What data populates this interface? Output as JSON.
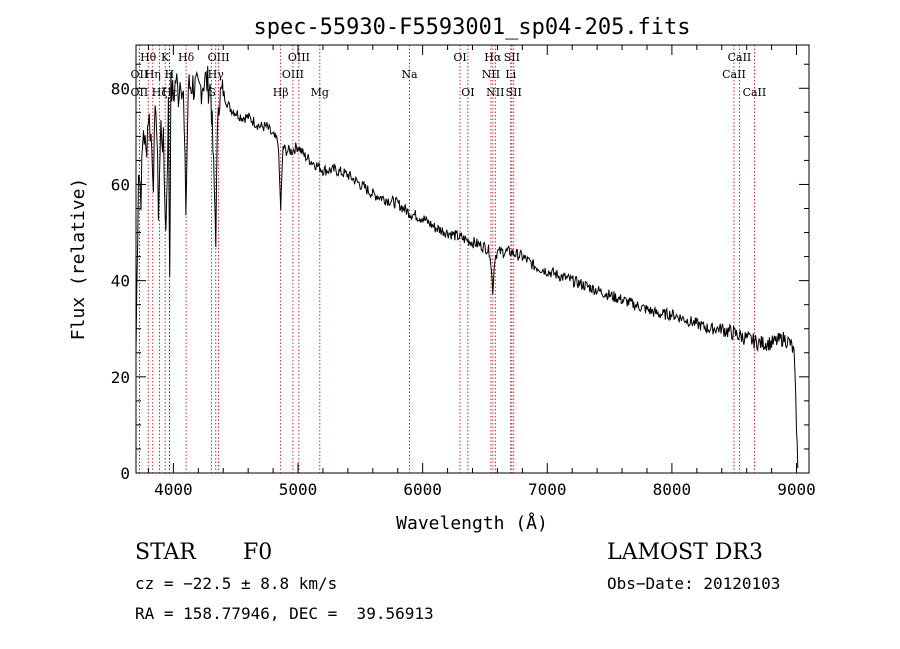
{
  "chart_data": {
    "type": "line",
    "title": "spec-55930-F5593001_sp04-205.fits",
    "xlabel": "Wavelength (Å)",
    "ylabel": "Flux (relative)",
    "xlim": [
      3700,
      9100
    ],
    "ylim": [
      0,
      89
    ],
    "xticks": [
      4000,
      5000,
      6000,
      7000,
      8000,
      9000
    ],
    "yticks": [
      0,
      20,
      40,
      60,
      80
    ],
    "series": [
      {
        "name": "spectrum",
        "x": [
          3700,
          3720,
          3740,
          3760,
          3780,
          3800,
          3820,
          3840,
          3860,
          3880,
          3900,
          3920,
          3940,
          3960,
          3970,
          3980,
          4000,
          4020,
          4040,
          4060,
          4080,
          4100,
          4120,
          4150,
          4200,
          4250,
          4300,
          4340,
          4360,
          4400,
          4450,
          4500,
          4550,
          4600,
          4650,
          4700,
          4750,
          4800,
          4840,
          4861,
          4880,
          4900,
          4950,
          5000,
          5050,
          5100,
          5150,
          5200,
          5300,
          5400,
          5500,
          5600,
          5700,
          5800,
          5900,
          6000,
          6100,
          6200,
          6300,
          6400,
          6500,
          6540,
          6563,
          6580,
          6600,
          6700,
          6800,
          6900,
          7000,
          7100,
          7200,
          7300,
          7400,
          7500,
          7600,
          7700,
          7800,
          7900,
          8000,
          8100,
          8200,
          8300,
          8400,
          8500,
          8600,
          8700,
          8800,
          8900,
          8950,
          8980,
          9000,
          9010
        ],
        "y": [
          25,
          64,
          58,
          72,
          66,
          75,
          70,
          62,
          78,
          55,
          72,
          68,
          50,
          76,
          42,
          80,
          78,
          82,
          79,
          83,
          78,
          55,
          80,
          81,
          79,
          82,
          80,
          50,
          78,
          79,
          76,
          75,
          74,
          74,
          73,
          72,
          72,
          70,
          69,
          55,
          68,
          67,
          67,
          68,
          66,
          65,
          64,
          63,
          63,
          62,
          60,
          58,
          57,
          56,
          54,
          53,
          51,
          50,
          49,
          48,
          47,
          46,
          38,
          45,
          46,
          46,
          45,
          43,
          42,
          41,
          40,
          39,
          38,
          37,
          36,
          35,
          34,
          33,
          33,
          32,
          31,
          30,
          30,
          29,
          28,
          27,
          27,
          28,
          27,
          25,
          10,
          1
        ]
      }
    ],
    "lines": [
      {
        "label": "Hθ",
        "x": 3798,
        "row": 0
      },
      {
        "label": "OII",
        "x": 3727,
        "row": 1
      },
      {
        "label": "OII",
        "x": 3727,
        "row": 2
      },
      {
        "label": "Hη",
        "x": 3835,
        "row": 1
      },
      {
        "label": "Hζ",
        "x": 3889,
        "row": 2
      },
      {
        "label": "K",
        "x": 3934,
        "row": 0
      },
      {
        "label": "H",
        "x": 3968,
        "row": 1
      },
      {
        "label": "Hε",
        "x": 3970,
        "row": 2
      },
      {
        "label": "Hδ",
        "x": 4102,
        "row": 0
      },
      {
        "label": "G",
        "x": 4305,
        "row": 2
      },
      {
        "label": "Hγ",
        "x": 4340,
        "row": 1
      },
      {
        "label": "OIII",
        "x": 4363,
        "row": 0
      },
      {
        "label": "Hβ",
        "x": 4861,
        "row": 2
      },
      {
        "label": "OIII",
        "x": 4959,
        "row": 1
      },
      {
        "label": "OIII",
        "x": 5007,
        "row": 0
      },
      {
        "label": "Mg",
        "x": 5175,
        "row": 2
      },
      {
        "label": "Na",
        "x": 5894,
        "row": 1
      },
      {
        "label": "OI",
        "x": 6300,
        "row": 0
      },
      {
        "label": "OI",
        "x": 6363,
        "row": 2
      },
      {
        "label": "NII",
        "x": 6548,
        "row": 1
      },
      {
        "label": "Hα",
        "x": 6563,
        "row": 0
      },
      {
        "label": "NII",
        "x": 6583,
        "row": 2
      },
      {
        "label": "Li",
        "x": 6707,
        "row": 1
      },
      {
        "label": "SII",
        "x": 6716,
        "row": 0
      },
      {
        "label": "SII",
        "x": 6731,
        "row": 2
      },
      {
        "label": "CaII",
        "x": 8498,
        "row": 1
      },
      {
        "label": "CaII",
        "x": 8542,
        "row": 0
      },
      {
        "label": "CaII",
        "x": 8662,
        "row": 2
      }
    ]
  },
  "info": {
    "class": "STAR",
    "subclass": "F0",
    "survey": "LAMOST DR3",
    "cz": "cz = −22.5 ± 8.8 km/s",
    "obs_date": "Obs−Date: 20120103",
    "coords": "RA = 158.77946, DEC =  39.56913"
  }
}
